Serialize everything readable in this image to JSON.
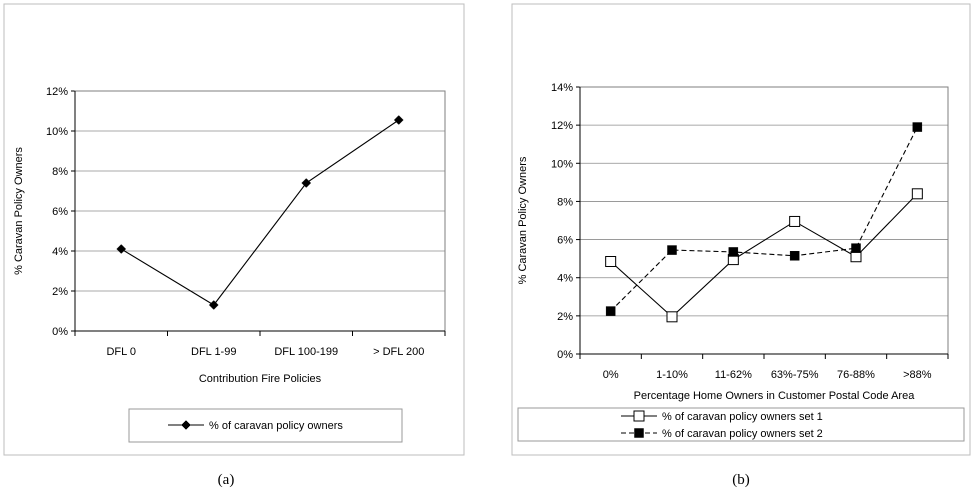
{
  "chart_data": [
    {
      "type": "line",
      "title": "",
      "xlabel": "Contribution Fire Policies",
      "ylabel": "% Caravan Policy Owners",
      "categories": [
        "DFL 0",
        "DFL 1-99",
        "DFL 100-199",
        "> DFL 200"
      ],
      "ylim": [
        0,
        12
      ],
      "yticks": [
        "0%",
        "2%",
        "4%",
        "6%",
        "8%",
        "10%",
        "12%"
      ],
      "grid": true,
      "legend_position": "bottom",
      "series": [
        {
          "name": "% of caravan policy owners",
          "values": [
            4.1,
            1.3,
            7.4,
            10.55
          ],
          "color": "#000000",
          "marker": "diamond-filled",
          "dash": "solid"
        }
      ],
      "caption": "(a)"
    },
    {
      "type": "line",
      "title": "",
      "xlabel": "Percentage Home Owners in Customer Postal Code Area",
      "ylabel": "% Caravan Policy Owners",
      "categories": [
        "0%",
        "1-10%",
        "11-62%",
        "63%-75%",
        "76-88%",
        ">88%"
      ],
      "ylim": [
        0,
        14
      ],
      "yticks": [
        "0%",
        "2%",
        "4%",
        "6%",
        "8%",
        "10%",
        "12%",
        "14%"
      ],
      "grid": true,
      "legend_position": "bottom",
      "series": [
        {
          "name": "% of caravan policy owners set 1",
          "values": [
            4.85,
            1.95,
            4.95,
            6.95,
            5.1,
            8.4
          ],
          "color": "#000000",
          "marker": "square-open",
          "dash": "solid"
        },
        {
          "name": "% of caravan policy owners set 2",
          "values": [
            2.25,
            5.45,
            5.35,
            5.15,
            5.55,
            11.9
          ],
          "color": "#000000",
          "marker": "square-filled",
          "dash": "dashed"
        }
      ],
      "caption": "(b)"
    }
  ]
}
